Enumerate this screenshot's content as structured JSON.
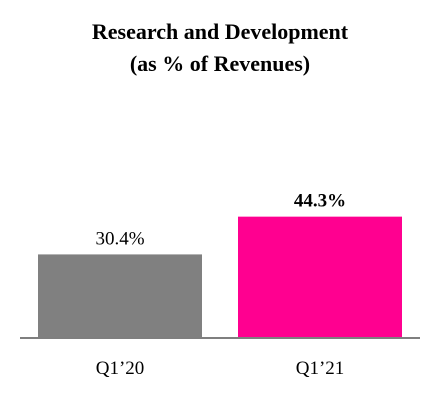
{
  "chart_data": {
    "type": "bar",
    "title_lines": [
      "Research and Development",
      "(as % of Revenues)"
    ],
    "categories": [
      "Q1’20",
      "Q1’21"
    ],
    "values": [
      30.4,
      44.3
    ],
    "value_labels": [
      "30.4%",
      "44.3%"
    ],
    "colors": [
      "#808080",
      "#ff0090"
    ],
    "label_bold": [
      false,
      true
    ],
    "axis_color": "#7f7f7f",
    "xlabel": "",
    "ylabel": "",
    "ylim": [
      0,
      60
    ],
    "grid": false,
    "legend": "none"
  }
}
